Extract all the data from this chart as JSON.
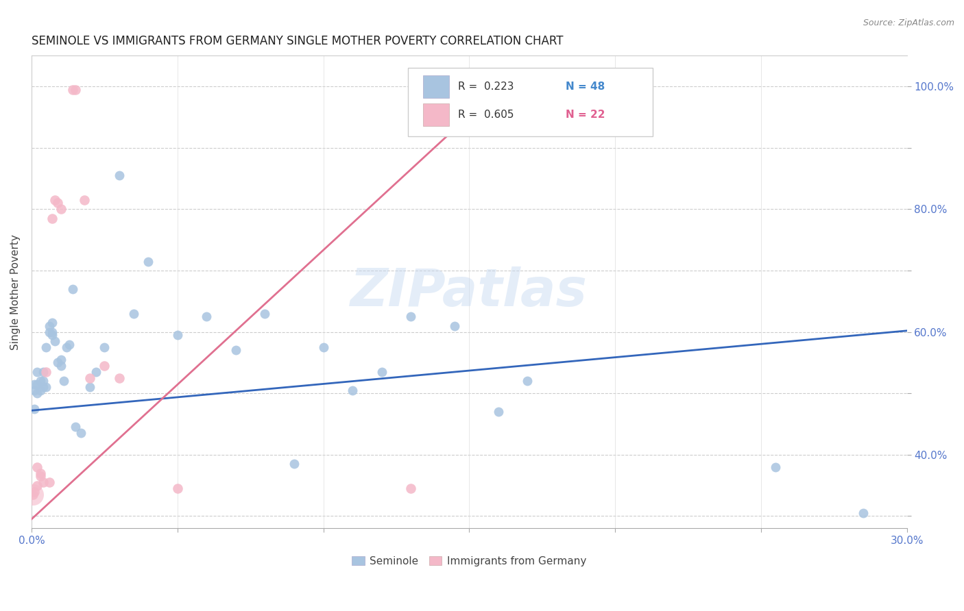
{
  "title": "SEMINOLE VS IMMIGRANTS FROM GERMANY SINGLE MOTHER POVERTY CORRELATION CHART",
  "source": "Source: ZipAtlas.com",
  "ylabel": "Single Mother Poverty",
  "x_min": 0.0,
  "x_max": 0.3,
  "y_min": 0.28,
  "y_max": 1.05,
  "x_ticks": [
    0.0,
    0.05,
    0.1,
    0.15,
    0.2,
    0.25,
    0.3
  ],
  "x_tick_labels": [
    "0.0%",
    "",
    "",
    "",
    "",
    "",
    "30.0%"
  ],
  "y_ticks": [
    0.3,
    0.4,
    0.5,
    0.6,
    0.7,
    0.8,
    0.9,
    1.0
  ],
  "y_tick_labels_right": [
    "",
    "40.0%",
    "",
    "60.0%",
    "",
    "80.0%",
    "",
    "100.0%"
  ],
  "seminole_color": "#a8c4e0",
  "germany_color": "#f4b8c8",
  "seminole_line_color": "#3366bb",
  "germany_line_color": "#e07090",
  "watermark": "ZIPatlas",
  "seminole_x": [
    0.001,
    0.001,
    0.001,
    0.002,
    0.002,
    0.002,
    0.003,
    0.003,
    0.004,
    0.004,
    0.004,
    0.005,
    0.005,
    0.006,
    0.006,
    0.007,
    0.007,
    0.007,
    0.008,
    0.009,
    0.01,
    0.01,
    0.011,
    0.012,
    0.013,
    0.014,
    0.015,
    0.017,
    0.02,
    0.022,
    0.025,
    0.03,
    0.035,
    0.04,
    0.05,
    0.06,
    0.07,
    0.08,
    0.09,
    0.1,
    0.11,
    0.12,
    0.13,
    0.145,
    0.16,
    0.17,
    0.255,
    0.285
  ],
  "seminole_y": [
    0.475,
    0.505,
    0.515,
    0.5,
    0.515,
    0.535,
    0.505,
    0.52,
    0.51,
    0.52,
    0.535,
    0.51,
    0.575,
    0.6,
    0.61,
    0.595,
    0.6,
    0.615,
    0.585,
    0.55,
    0.545,
    0.555,
    0.52,
    0.575,
    0.58,
    0.67,
    0.445,
    0.435,
    0.51,
    0.535,
    0.575,
    0.855,
    0.63,
    0.715,
    0.595,
    0.625,
    0.57,
    0.63,
    0.385,
    0.575,
    0.505,
    0.535,
    0.625,
    0.61,
    0.47,
    0.52,
    0.38,
    0.305
  ],
  "germany_x": [
    0.0005,
    0.001,
    0.002,
    0.002,
    0.003,
    0.003,
    0.004,
    0.005,
    0.006,
    0.007,
    0.008,
    0.009,
    0.01,
    0.014,
    0.015,
    0.018,
    0.02,
    0.025,
    0.03,
    0.05,
    0.13,
    0.16
  ],
  "germany_y": [
    0.335,
    0.34,
    0.35,
    0.38,
    0.365,
    0.37,
    0.355,
    0.535,
    0.355,
    0.785,
    0.815,
    0.81,
    0.8,
    0.995,
    0.995,
    0.815,
    0.525,
    0.545,
    0.525,
    0.345,
    0.345,
    1.005
  ],
  "germany_big_x": [
    0.0005
  ],
  "germany_big_y": [
    0.335
  ],
  "sem_line_x": [
    0.0,
    0.3
  ],
  "sem_line_y": [
    0.472,
    0.602
  ],
  "ger_line_x": [
    0.0,
    0.162
  ],
  "ger_line_y": [
    0.295,
    1.005
  ]
}
